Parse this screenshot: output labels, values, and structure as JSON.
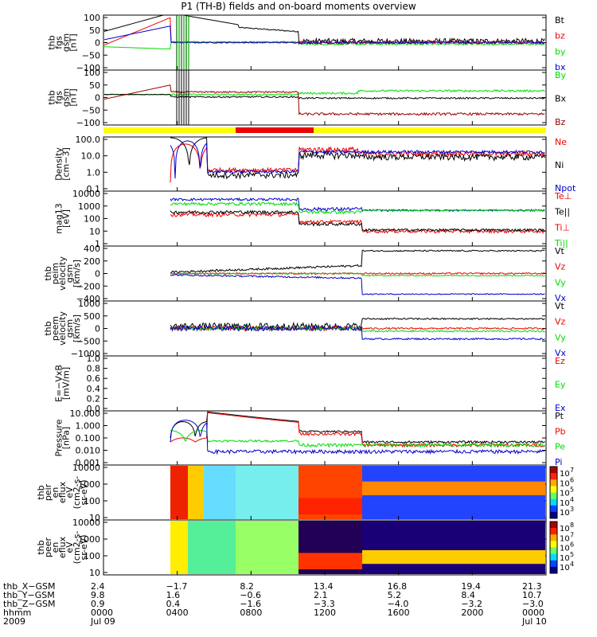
{
  "title": "P1 (TH-B) fields and on-board moments overview",
  "colors": {
    "black": "#000000",
    "red": "#ee0000",
    "green": "#00dd00",
    "blue": "#0000cc",
    "darkred": "#990000",
    "yellow": "#ffff00"
  },
  "chart_data": [
    {
      "type": "line",
      "id": "fgs",
      "ylabel": [
        "thb",
        "fgs",
        "gsm",
        "[nT]"
      ],
      "yticks": [
        "100",
        "50",
        "0",
        "−50",
        "−100"
      ],
      "yrange": [
        -100,
        100
      ],
      "legend": [
        {
          "label": "Bt",
          "color": "black"
        },
        {
          "label": "bz",
          "color": "red"
        },
        {
          "label": "by",
          "color": "green"
        },
        {
          "label": "bx",
          "color": "blue"
        }
      ]
    },
    {
      "type": "line",
      "id": "fgs_dsl",
      "ylabel": [
        "thb",
        "fgs",
        "gsm",
        "[nT]"
      ],
      "yticks": [
        "100",
        "50",
        "0",
        "−50",
        "−100"
      ],
      "yrange": [
        -125,
        100
      ],
      "legend": [
        {
          "label": "By",
          "color": "green"
        },
        {
          "label": "Bx",
          "color": "black"
        },
        {
          "label": "Bz",
          "color": "darkred"
        }
      ]
    },
    {
      "type": "line",
      "id": "density",
      "ylabel": [
        "Density",
        "[cm−3]"
      ],
      "yticks": [
        "100.0",
        "10.0",
        "1.0",
        "0.1"
      ],
      "ylog": true,
      "yrange": [
        0.1,
        100
      ],
      "legend": [
        {
          "label": "Ne",
          "color": "red"
        },
        {
          "label": "Ni",
          "color": "black"
        },
        {
          "label": "Npot",
          "color": "blue"
        }
      ]
    },
    {
      "type": "line",
      "id": "temp",
      "ylabel": [
        "mag13",
        "[eV]"
      ],
      "yticks": [
        "10000",
        "1000",
        "100",
        "10",
        "1"
      ],
      "ylog": true,
      "yrange": [
        1,
        10000
      ],
      "legend": [
        {
          "label": "Te⊥",
          "color": "red"
        },
        {
          "label": "Te||",
          "color": "black"
        },
        {
          "label": "Ti⊥",
          "color": "red"
        },
        {
          "label": "Ti||",
          "color": "green"
        }
      ]
    },
    {
      "type": "line",
      "id": "peim",
      "ylabel": [
        "thb",
        "peim",
        "velocity",
        "gsm",
        "[km/s]"
      ],
      "yticks": [
        "400",
        "200",
        "0",
        "−200",
        "−400"
      ],
      "yrange": [
        -400,
        400
      ],
      "legend": [
        {
          "label": "Vt",
          "color": "black"
        },
        {
          "label": "Vz",
          "color": "red"
        },
        {
          "label": "Vy",
          "color": "green"
        },
        {
          "label": "Vx",
          "color": "blue"
        }
      ]
    },
    {
      "type": "line",
      "id": "peem",
      "ylabel": [
        "thb",
        "peem",
        "velocity",
        "gsm",
        "[km/s]"
      ],
      "yticks": [
        "1000",
        "500",
        "0",
        "−500",
        "−1000"
      ],
      "yrange": [
        -1000,
        1000
      ],
      "legend": [
        {
          "label": "Vt",
          "color": "black"
        },
        {
          "label": "Vz",
          "color": "red"
        },
        {
          "label": "Vy",
          "color": "green"
        },
        {
          "label": "Vx",
          "color": "blue"
        }
      ]
    },
    {
      "type": "line",
      "id": "efield",
      "ylabel": [
        "E=−VxB",
        "[mV/m]"
      ],
      "yticks": [
        "1.0",
        "0.8",
        "0.6",
        "0.4",
        "0.2",
        "0.0"
      ],
      "yrange": [
        0,
        1
      ],
      "legend": [
        {
          "label": "Ez",
          "color": "red"
        },
        {
          "label": "Ey",
          "color": "green"
        },
        {
          "label": "Ex",
          "color": "blue"
        }
      ]
    },
    {
      "type": "line",
      "id": "pressure",
      "ylabel": [
        "Pressure",
        "[nPa]"
      ],
      "yticks": [
        "10.000",
        "1.000",
        "0.100",
        "0.010",
        "0.001"
      ],
      "ylog": true,
      "yrange": [
        0.001,
        10
      ],
      "legend": [
        {
          "label": "Pt",
          "color": "black"
        },
        {
          "label": "Pb",
          "color": "red"
        },
        {
          "label": "Pe",
          "color": "green"
        },
        {
          "label": "Pi",
          "color": "blue"
        }
      ]
    },
    {
      "type": "heatmap",
      "id": "peir",
      "ylabel": [
        "thb",
        "peir",
        "en",
        "eflux",
        "eV",
        "(cm2-s-",
        "sr-eV)"
      ],
      "yticks": [
        "10000",
        "1000",
        "100",
        "10"
      ],
      "colorbar": [
        "10",
        "7",
        "10",
        "6",
        "10",
        "5",
        "10",
        "4",
        "10",
        "3"
      ],
      "cb_ticks": [
        {
          "b": "10",
          "e": "7"
        },
        {
          "b": "10",
          "e": "6"
        },
        {
          "b": "10",
          "e": "5"
        },
        {
          "b": "10",
          "e": "4"
        },
        {
          "b": "10",
          "e": "3"
        }
      ]
    },
    {
      "type": "heatmap",
      "id": "peer",
      "ylabel": [
        "thb",
        "peer",
        "en",
        "eflux",
        "eV",
        "(cm2-s-",
        "sr-eV)"
      ],
      "yticks": [
        "10000",
        "1000",
        "100",
        "10"
      ],
      "cb_ticks": [
        {
          "b": "10",
          "e": "8"
        },
        {
          "b": "10",
          "e": "7"
        },
        {
          "b": "10",
          "e": "6"
        },
        {
          "b": "10",
          "e": "5"
        },
        {
          "b": "10",
          "e": "4"
        }
      ]
    }
  ],
  "ephemeris": {
    "labels": [
      "thb_X−GSM",
      "thb_Y−GSM",
      "thb_Z−GSM",
      "hhmm",
      "2009"
    ],
    "columns": [
      [
        "2.4",
        "9.8",
        "0.9",
        "0000",
        "Jul 09"
      ],
      [
        "−1.7",
        "1.6",
        "0.4",
        "0400",
        ""
      ],
      [
        "8.2",
        "−0.6",
        "−1.6",
        "0800",
        ""
      ],
      [
        "13.4",
        "2.1",
        "−3.3",
        "1200",
        ""
      ],
      [
        "16.8",
        "5.2",
        "−4.0",
        "1600",
        ""
      ],
      [
        "19.4",
        "8.4",
        "−3.2",
        "2000",
        ""
      ],
      [
        "21.3",
        "10.7",
        "−3.0",
        "0000",
        "Jul 10"
      ]
    ]
  }
}
